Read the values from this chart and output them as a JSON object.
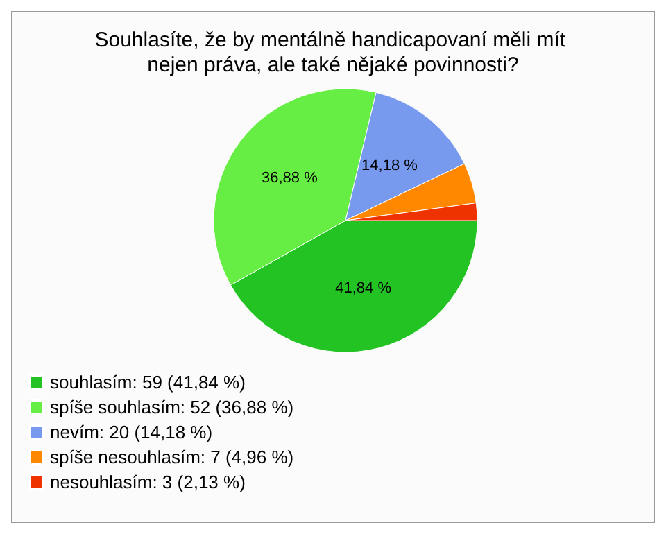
{
  "chart_data": {
    "type": "pie",
    "title": "Souhlasíte, že by mentálně handicapovaní měli mít nejen práva, ale také nějaké povinnosti?",
    "categories": [
      "souhlasím: 59 (41,84 %)",
      "spíše souhlasím: 52 (36,88 %)",
      "nevím: 20 (14,18 %)",
      "spíše nesouhlasím: 7 (4,96 %)",
      "nesouhlasím: 3 (2,13 %)"
    ],
    "values": [
      41.84,
      36.88,
      14.18,
      4.96,
      2.13
    ],
    "colors": [
      "#22c322",
      "#66ee44",
      "#7799ee",
      "#ff8800",
      "#ee3300"
    ],
    "value_labels": [
      "41,84 %",
      "36,88 %",
      "14,18 %",
      null,
      null
    ],
    "legend": "bottom left"
  }
}
